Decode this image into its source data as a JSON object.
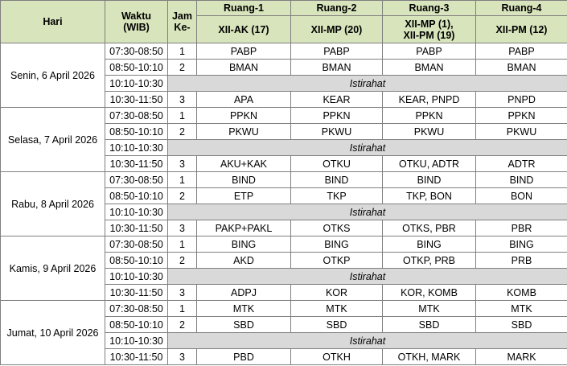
{
  "header": {
    "hari": "Hari",
    "waktu_line1": "Waktu",
    "waktu_line2": "(WIB)",
    "jam_line1": "Jam",
    "jam_line2": "Ke-",
    "rooms": [
      {
        "name": "Ruang-1",
        "class": "XII-AK (17)"
      },
      {
        "name": "Ruang-2",
        "class": "XII-MP (20)"
      },
      {
        "name": "Ruang-3",
        "class_line1": "XII-MP (1),",
        "class_line2": "XII-PM (19)"
      },
      {
        "name": "Ruang-4",
        "class": "XII-PM (12)"
      }
    ]
  },
  "days": [
    {
      "label": "Senin, 6 April 2026",
      "slots": [
        {
          "time": "07:30-08:50",
          "jam": "1",
          "r1": "PABP",
          "r2": "PABP",
          "r3": "PABP",
          "r4": "PABP"
        },
        {
          "time": "08:50-10:10",
          "jam": "2",
          "r1": "BMAN",
          "r2": "BMAN",
          "r3": "BMAN",
          "r4": "BMAN"
        },
        {
          "time": "10:10-10:30",
          "break": "Istirahat"
        },
        {
          "time": "10:30-11:50",
          "jam": "3",
          "r1": "APA",
          "r2": "KEAR",
          "r3": "KEAR, PNPD",
          "r4": "PNPD"
        }
      ]
    },
    {
      "label": "Selasa, 7 April 2026",
      "slots": [
        {
          "time": "07:30-08:50",
          "jam": "1",
          "r1": "PPKN",
          "r2": "PPKN",
          "r3": "PPKN",
          "r4": "PPKN"
        },
        {
          "time": "08:50-10:10",
          "jam": "2",
          "r1": "PKWU",
          "r2": "PKWU",
          "r3": "PKWU",
          "r4": "PKWU"
        },
        {
          "time": "10:10-10:30",
          "break": "Istirahat"
        },
        {
          "time": "10:30-11:50",
          "jam": "3",
          "r1": "AKU+KAK",
          "r2": "OTKU",
          "r3": "OTKU, ADTR",
          "r4": "ADTR"
        }
      ]
    },
    {
      "label": "Rabu, 8 April 2026",
      "slots": [
        {
          "time": "07:30-08:50",
          "jam": "1",
          "r1": "BIND",
          "r2": "BIND",
          "r3": "BIND",
          "r4": "BIND"
        },
        {
          "time": "08:50-10:10",
          "jam": "2",
          "r1": "ETP",
          "r2": "TKP",
          "r3": "TKP, BON",
          "r4": "BON"
        },
        {
          "time": "10:10-10:30",
          "break": "Istirahat"
        },
        {
          "time": "10:30-11:50",
          "jam": "3",
          "r1": "PAKP+PAKL",
          "r2": "OTKS",
          "r3": "OTKS, PBR",
          "r4": "PBR"
        }
      ]
    },
    {
      "label": "Kamis, 9 April 2026",
      "slots": [
        {
          "time": "07:30-08:50",
          "jam": "1",
          "r1": "BING",
          "r2": "BING",
          "r3": "BING",
          "r4": "BING"
        },
        {
          "time": "08:50-10:10",
          "jam": "2",
          "r1": "AKD",
          "r2": "OTKP",
          "r3": "OTKP, PRB",
          "r4": "PRB"
        },
        {
          "time": "10:10-10:30",
          "break": "Istirahat"
        },
        {
          "time": "10:30-11:50",
          "jam": "3",
          "r1": "ADPJ",
          "r2": "KOR",
          "r3": "KOR, KOMB",
          "r4": "KOMB"
        }
      ]
    },
    {
      "label": "Jumat, 10 April 2026",
      "slots": [
        {
          "time": "07:30-08:50",
          "jam": "1",
          "r1": "MTK",
          "r2": "MTK",
          "r3": "MTK",
          "r4": "MTK"
        },
        {
          "time": "08:50-10:10",
          "jam": "2",
          "r1": "SBD",
          "r2": "SBD",
          "r3": "SBD",
          "r4": "SBD"
        },
        {
          "time": "10:10-10:30",
          "break": "Istirahat"
        },
        {
          "time": "10:30-11:50",
          "jam": "3",
          "r1": "PBD",
          "r2": "OTKH",
          "r3": "OTKH, MARK",
          "r4": "MARK"
        }
      ]
    }
  ]
}
